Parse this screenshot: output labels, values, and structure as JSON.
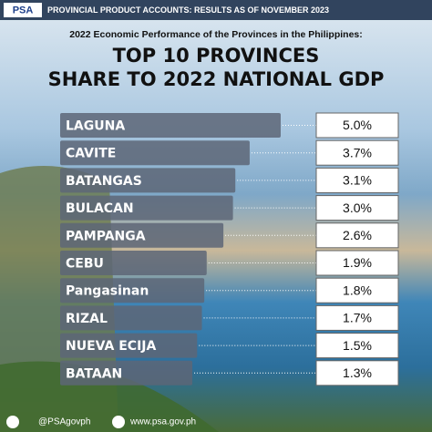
{
  "header": {
    "logo": "PSA",
    "banner": "PROVINCIAL PRODUCT ACCOUNTS: RESULTS AS OF NOVEMBER 2023"
  },
  "chart_data": {
    "type": "bar",
    "orientation": "horizontal",
    "subtitle": "2022 Economic Performance of the Provinces in the Philippines:",
    "title": [
      "TOP 10 PROVINCES",
      "SHARE TO 2022 NATIONAL GDP"
    ],
    "categories": [
      "LAGUNA",
      "CAVITE",
      "BATANGAS",
      "BULACAN",
      "PAMPANGA",
      "CEBU",
      "Pangasinan",
      "RIZAL",
      "NUEVA ECIJA",
      "BATAAN"
    ],
    "values": [
      5.0,
      3.7,
      3.1,
      3.0,
      2.6,
      1.9,
      1.8,
      1.7,
      1.5,
      1.3
    ],
    "value_labels": [
      "5.0%",
      "3.7%",
      "3.1%",
      "3.0%",
      "2.6%",
      "1.9%",
      "1.8%",
      "1.7%",
      "1.5%",
      "1.3%"
    ],
    "color": "#5d6677"
  },
  "footer": {
    "social": "@PSAgovph",
    "website": "www.psa.gov.ph"
  }
}
